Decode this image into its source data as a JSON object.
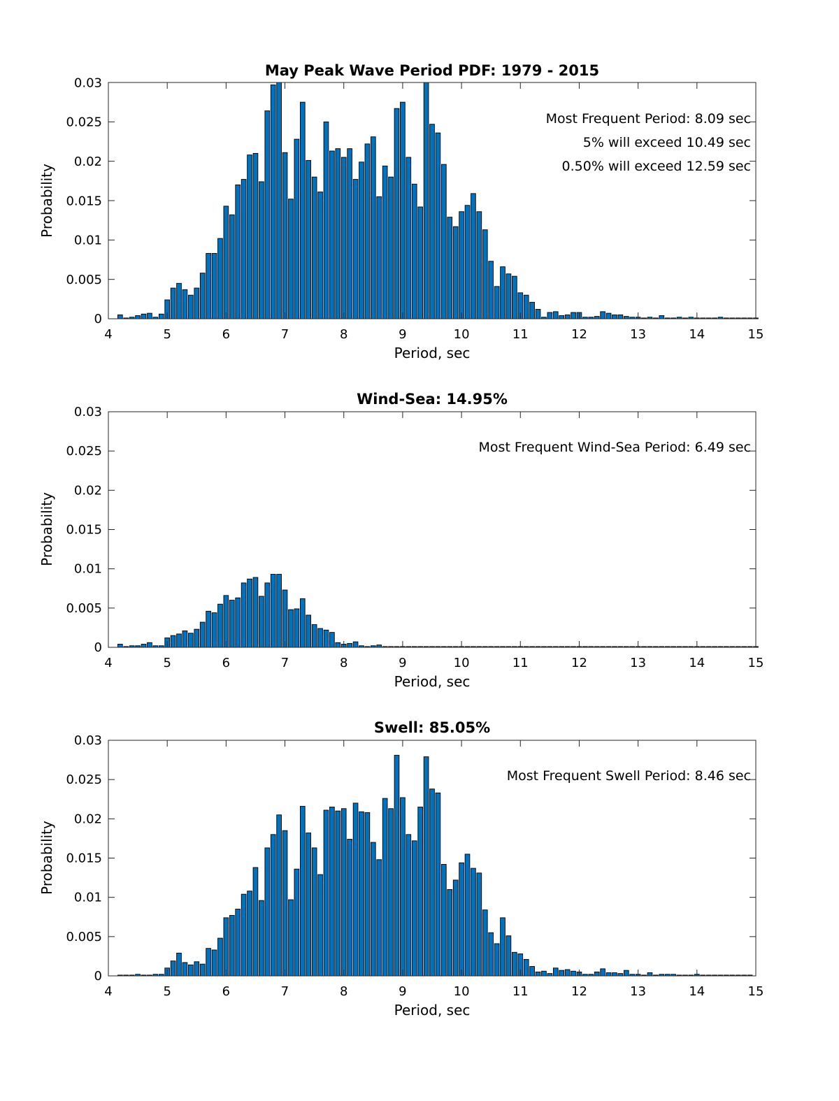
{
  "chart_data": [
    {
      "type": "bar",
      "title": "May Peak Wave Period PDF: 1979 - 2015",
      "xlabel": "Period, sec",
      "ylabel": "Probability",
      "xlim": [
        4,
        15
      ],
      "ylim": [
        0,
        0.03
      ],
      "xticks": [
        "4",
        "5",
        "6",
        "7",
        "8",
        "9",
        "10",
        "11",
        "12",
        "13",
        "14",
        "15"
      ],
      "yticks": [
        "0",
        "0.005",
        "0.01",
        "0.015",
        "0.02",
        "0.025",
        "0.03"
      ],
      "bar_color": "#0072BD",
      "bin_start": 4.2,
      "bin_width": 0.1,
      "annotations": [
        "Most Frequent Period: 8.09 sec",
        "5% will exceed 10.49 sec",
        "0.50% will exceed 12.59 sec"
      ],
      "values": [
        0.0005,
        0.0001,
        0.0002,
        0.0004,
        0.0006,
        0.0007,
        0.0002,
        0.0006,
        0.0024,
        0.0039,
        0.0045,
        0.0037,
        0.003,
        0.0039,
        0.0058,
        0.0083,
        0.0083,
        0.0102,
        0.0143,
        0.0132,
        0.017,
        0.0177,
        0.0208,
        0.021,
        0.0174,
        0.0264,
        0.0297,
        0.03,
        0.0211,
        0.0152,
        0.0228,
        0.0275,
        0.0201,
        0.018,
        0.0161,
        0.025,
        0.0213,
        0.0216,
        0.0205,
        0.0216,
        0.0177,
        0.0199,
        0.0222,
        0.0231,
        0.0155,
        0.0194,
        0.018,
        0.0267,
        0.0275,
        0.0205,
        0.0171,
        0.0142,
        0.0303,
        0.0247,
        0.0236,
        0.0196,
        0.0129,
        0.0117,
        0.0136,
        0.0144,
        0.0159,
        0.0136,
        0.0113,
        0.0073,
        0.0041,
        0.0066,
        0.0057,
        0.0054,
        0.0033,
        0.003,
        0.0021,
        0.0012,
        0.0002,
        0.0008,
        0.0009,
        0.0004,
        0.0005,
        0.0008,
        0.0008,
        0.0002,
        0.0002,
        0.0003,
        0.0009,
        0.0007,
        0.0005,
        0.0005,
        0.0003,
        0.0002,
        0.0002,
        0.0001,
        0.0002,
        0.0001,
        0.0004,
        0.0001,
        0.0001,
        0.0002,
        0.0001,
        0.0002,
        0.0001,
        0.0001,
        0.0001,
        0.0001,
        0.0002,
        0.0001,
        0.0001,
        0.0001,
        0.0001,
        0.0001,
        0.0001
      ]
    },
    {
      "type": "bar",
      "title": "Wind-Sea: 14.95%",
      "xlabel": "Period, sec",
      "ylabel": "Probability",
      "xlim": [
        4,
        15
      ],
      "ylim": [
        0,
        0.03
      ],
      "xticks": [
        "4",
        "5",
        "6",
        "7",
        "8",
        "9",
        "10",
        "11",
        "12",
        "13",
        "14",
        "15"
      ],
      "yticks": [
        "0",
        "0.005",
        "0.01",
        "0.015",
        "0.02",
        "0.025",
        "0.03"
      ],
      "bar_color": "#0072BD",
      "bin_start": 4.2,
      "bin_width": 0.1,
      "annotations": [
        "Most Frequent Wind-Sea Period: 6.49 sec"
      ],
      "values": [
        0.0004,
        0.0001,
        0.0002,
        0.0002,
        0.0004,
        0.0006,
        0.0002,
        0.0002,
        0.0012,
        0.0015,
        0.0017,
        0.0021,
        0.0018,
        0.0023,
        0.0032,
        0.0046,
        0.0044,
        0.0055,
        0.0066,
        0.006,
        0.0063,
        0.0082,
        0.0087,
        0.0089,
        0.0065,
        0.0082,
        0.0093,
        0.0093,
        0.0073,
        0.0048,
        0.0049,
        0.0062,
        0.0041,
        0.0029,
        0.0024,
        0.0022,
        0.0019,
        0.0006,
        0.0004,
        0.0005,
        0.0007,
        0.0002,
        0.0001,
        0.0002,
        0.0003,
        0.0001,
        0.0001,
        0.0001,
        0.0001,
        0.0001,
        0.0001,
        0.0001,
        0.0001,
        0.0001,
        0.0001,
        0.0001,
        0.0001,
        0.0001,
        0.0001,
        0.0001,
        0.0001,
        0.0001,
        0.0001,
        0.0001,
        0.0001,
        0.0001,
        0.0001,
        0.0001,
        0.0001,
        0.0001,
        0.0001,
        0.0001,
        0.0001,
        0.0001,
        0.0001,
        0.0001,
        0.0001,
        0.0001,
        0.0001,
        0.0001,
        0.0001,
        0.0001,
        0.0001,
        0.0001,
        0.0001,
        0.0001,
        0.0001,
        0.0001,
        0.0001,
        0.0001,
        0.0001,
        0.0001,
        0.0001,
        0.0001,
        0.0001,
        0.0001,
        0.0001,
        0.0001,
        0.0001,
        0.0001,
        0.0001,
        0.0001,
        0.0001,
        0.0001,
        0.0001,
        0.0001,
        0.0001,
        0.0001,
        0.0001
      ]
    },
    {
      "type": "bar",
      "title": "Swell: 85.05%",
      "xlabel": "Period, sec",
      "ylabel": "Probability",
      "xlim": [
        4,
        15
      ],
      "ylim": [
        0,
        0.03
      ],
      "xticks": [
        "4",
        "5",
        "6",
        "7",
        "8",
        "9",
        "10",
        "11",
        "12",
        "13",
        "14",
        "15"
      ],
      "yticks": [
        "0",
        "0.005",
        "0.01",
        "0.015",
        "0.02",
        "0.025",
        "0.03"
      ],
      "bar_color": "#0072BD",
      "bin_start": 4.2,
      "bin_width": 0.1,
      "annotations": [
        "Most Frequent Swell Period: 8.46 sec"
      ],
      "values": [
        0.0001,
        0.0001,
        0.0001,
        0.0002,
        0.0001,
        0.0001,
        0.0002,
        0.0002,
        0.001,
        0.0019,
        0.0029,
        0.0017,
        0.0014,
        0.0018,
        0.0015,
        0.0035,
        0.0033,
        0.0048,
        0.0074,
        0.0077,
        0.0085,
        0.0104,
        0.0108,
        0.0138,
        0.0096,
        0.0163,
        0.018,
        0.0205,
        0.0185,
        0.0097,
        0.0136,
        0.0216,
        0.0182,
        0.0163,
        0.0129,
        0.0211,
        0.0215,
        0.021,
        0.0213,
        0.0174,
        0.022,
        0.0209,
        0.0208,
        0.017,
        0.0148,
        0.0226,
        0.0213,
        0.0281,
        0.0227,
        0.018,
        0.0172,
        0.0215,
        0.0279,
        0.0238,
        0.0233,
        0.0142,
        0.011,
        0.0122,
        0.0144,
        0.0155,
        0.0137,
        0.0131,
        0.0084,
        0.0055,
        0.0041,
        0.0074,
        0.0051,
        0.003,
        0.0028,
        0.0021,
        0.0012,
        0.0005,
        0.0006,
        0.0003,
        0.001,
        0.0007,
        0.0008,
        0.0006,
        0.0005,
        0.0002,
        0.0002,
        0.0005,
        0.0009,
        0.0004,
        0.0004,
        0.0003,
        0.0007,
        0.0002,
        0.0002,
        0.0001,
        0.0004,
        0.0001,
        0.0002,
        0.0002,
        0.0002,
        0.0001,
        0.0001,
        0.0001,
        0.0002,
        0.0001,
        0.0001,
        0.0001,
        0.0001,
        0.0001,
        0.0001,
        0.0001,
        0.0001,
        0.0001
      ]
    }
  ]
}
